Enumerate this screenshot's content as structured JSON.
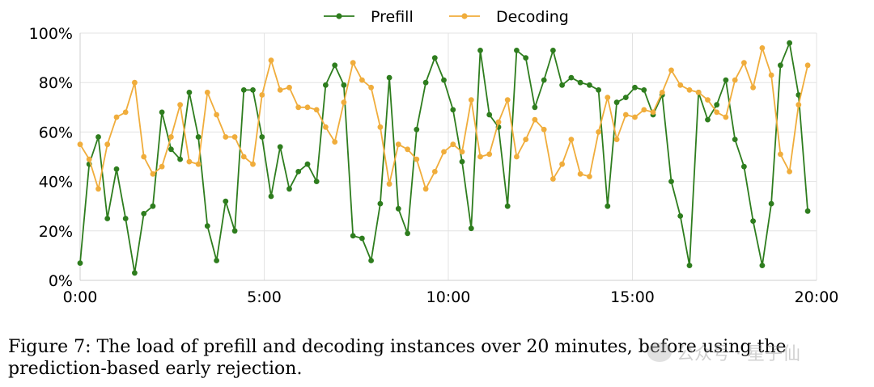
{
  "chart_data": {
    "type": "line",
    "title": "",
    "xlabel": "",
    "ylabel": "",
    "x_range_minutes": [
      0,
      20
    ],
    "ylim": [
      0,
      100
    ],
    "x_ticks": [
      "0:00",
      "5:00",
      "10:00",
      "15:00",
      "20:00"
    ],
    "y_ticks": [
      "0%",
      "20%",
      "40%",
      "60%",
      "80%",
      "100%"
    ],
    "grid": true,
    "legend_position": "top-center",
    "sample_interval_minutes": 0.247,
    "series": [
      {
        "name": "Prefill",
        "color": "#2e7d1e",
        "values": [
          7,
          47,
          58,
          25,
          45,
          25,
          3,
          27,
          30,
          68,
          53,
          49,
          76,
          58,
          22,
          8,
          32,
          20,
          77,
          77,
          58,
          34,
          54,
          37,
          44,
          47,
          40,
          79,
          87,
          79,
          18,
          17,
          8,
          31,
          82,
          29,
          19,
          61,
          80,
          90,
          81,
          69,
          48,
          21,
          93,
          67,
          62,
          30,
          93,
          90,
          70,
          81,
          93,
          79,
          82,
          80,
          79,
          77,
          30,
          72,
          74,
          78,
          77,
          67,
          75,
          40,
          26,
          6,
          76,
          65,
          71,
          81,
          57,
          46,
          24,
          6,
          31,
          87,
          96,
          75,
          28
        ]
      },
      {
        "name": "Decoding",
        "color": "#f0ad3c",
        "values": [
          55,
          49,
          37,
          55,
          66,
          68,
          80,
          50,
          43,
          46,
          58,
          71,
          48,
          47,
          76,
          67,
          58,
          58,
          50,
          47,
          75,
          89,
          77,
          78,
          70,
          70,
          69,
          62,
          56,
          72,
          88,
          81,
          78,
          62,
          39,
          55,
          53,
          49,
          37,
          44,
          52,
          55,
          52,
          73,
          50,
          51,
          64,
          73,
          50,
          57,
          65,
          61,
          41,
          47,
          57,
          43,
          42,
          60,
          74,
          57,
          67,
          66,
          69,
          68,
          76,
          85,
          79,
          77,
          76,
          73,
          68,
          66,
          81,
          88,
          78,
          94,
          83,
          51,
          44,
          71,
          87
        ]
      }
    ]
  },
  "caption": "Figure 7: The load of prefill and decoding instances over 20 minutes, before using the prediction-based early rejection.",
  "watermark": "公众号 · 星子仙"
}
